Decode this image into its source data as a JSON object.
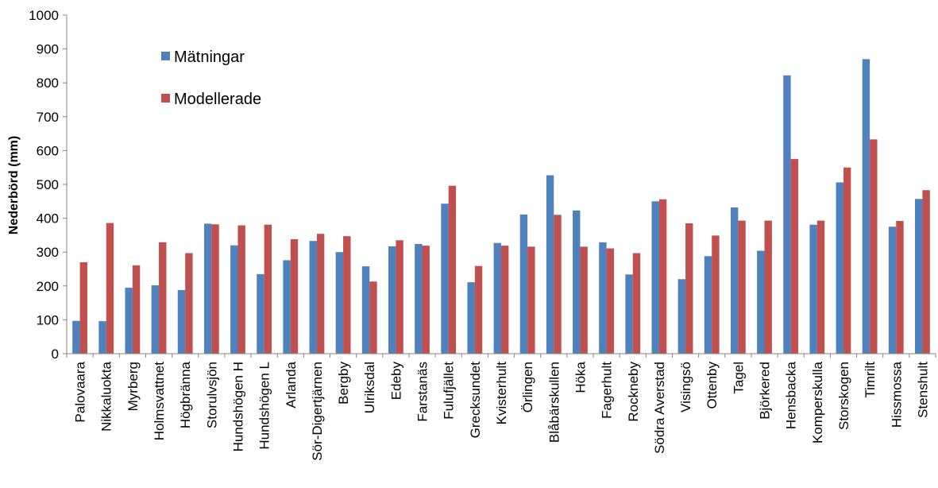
{
  "chart_data": {
    "type": "bar",
    "ylabel": "Nederbörd (mm)",
    "xlabel": "",
    "ylim": [
      0,
      1000
    ],
    "yticks": [
      0,
      100,
      200,
      300,
      400,
      500,
      600,
      700,
      800,
      900,
      1000
    ],
    "grid": false,
    "legend_position": "top-left",
    "categories": [
      "Palovaara",
      "Nikkaluokta",
      "Myrberg",
      "Holmsvattnet",
      "Högbränna",
      "Storulvsjön",
      "Hundshögen H",
      "Hundshögen L",
      "Arlanda",
      "Sör-Digertjärnen",
      "Bergby",
      "Ulriksdal",
      "Edeby",
      "Farstanäs",
      "Fulufjället",
      "Grecksundet",
      "Kvisterhult",
      "Örlingen",
      "Blåbärskullen",
      "Höka",
      "Fagerhult",
      "Rockneby",
      "Södra Averstad",
      "Visingsö",
      "Ottenby",
      "Tagel",
      "Björkered",
      "Hensbacka",
      "Komperskulla",
      "Storskogen",
      "Timrilt",
      "Hissmossa",
      "Stenshult"
    ],
    "series": [
      {
        "name": "Mätningar",
        "color": "#4F81BD",
        "values": [
          97,
          96,
          195,
          202,
          188,
          384,
          320,
          235,
          276,
          333,
          300,
          258,
          317,
          324,
          443,
          211,
          327,
          411,
          527,
          423,
          329,
          234,
          450,
          220,
          288,
          432,
          304,
          822,
          381,
          506,
          870,
          375,
          457
        ]
      },
      {
        "name": "Modellerade",
        "color": "#C0504D",
        "values": [
          270,
          386,
          261,
          329,
          297,
          382,
          379,
          381,
          338,
          354,
          347,
          213,
          335,
          319,
          496,
          259,
          319,
          316,
          410,
          316,
          311,
          297,
          456,
          385,
          349,
          393,
          393,
          575,
          393,
          550,
          633,
          392,
          483
        ]
      }
    ]
  }
}
